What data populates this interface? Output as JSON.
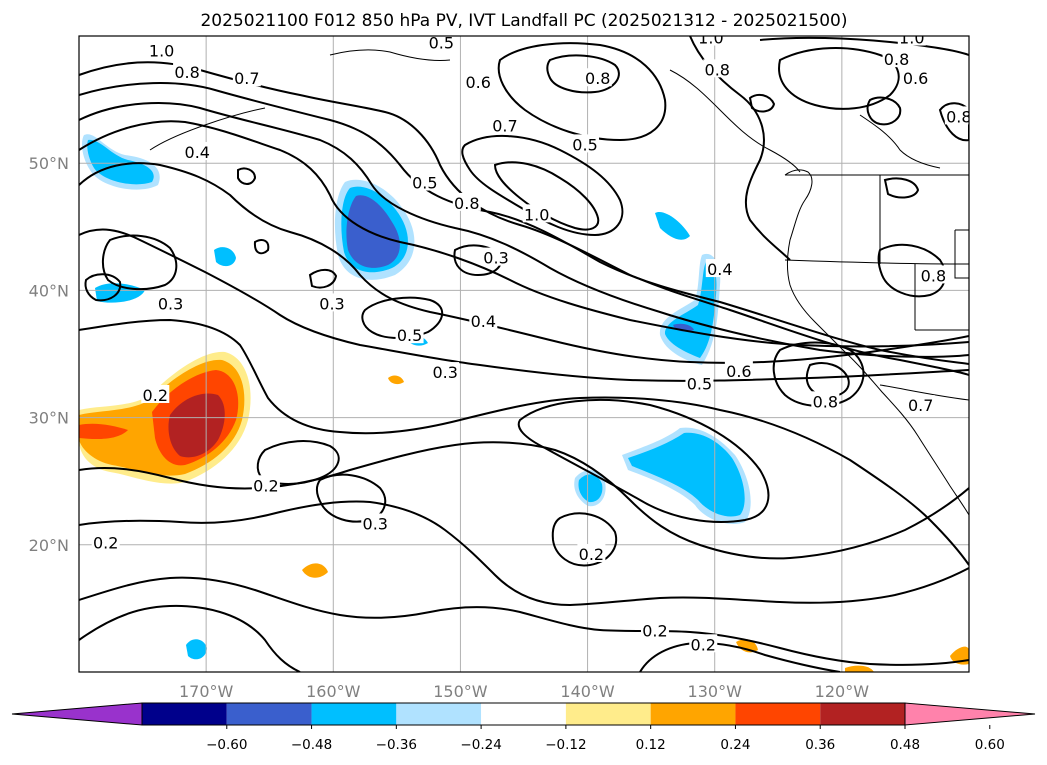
{
  "title": "2025021100 F012 850 hPa PV, IVT Landfall PC (2025021312 - 2025021500)",
  "map": {
    "projection": "PlateCarree",
    "extent": {
      "lon": [
        -180,
        -110
      ],
      "lat": [
        10,
        60
      ]
    },
    "gridlines": true,
    "lon_ticks": [
      {
        "value": -170,
        "label": "170°W"
      },
      {
        "value": -160,
        "label": "160°W"
      },
      {
        "value": -150,
        "label": "150°W"
      },
      {
        "value": -140,
        "label": "140°W"
      },
      {
        "value": -130,
        "label": "130°W"
      },
      {
        "value": -120,
        "label": "120°W"
      }
    ],
    "lat_ticks": [
      {
        "value": 20,
        "label": "20°N"
      },
      {
        "value": 30,
        "label": "30°N"
      },
      {
        "value": 40,
        "label": "40°N"
      },
      {
        "value": 50,
        "label": "50°N"
      }
    ]
  },
  "contour_labels": [
    {
      "text": "1.0",
      "lon": -173.5,
      "lat": 58.8
    },
    {
      "text": "0.8",
      "lon": -171.5,
      "lat": 57.1
    },
    {
      "text": "0.7",
      "lon": -166.8,
      "lat": 56.6
    },
    {
      "text": "0.5",
      "lon": -151.5,
      "lat": 59.4
    },
    {
      "text": "0.6",
      "lon": -148.6,
      "lat": 56.3
    },
    {
      "text": "0.7",
      "lon": -146.5,
      "lat": 52.9
    },
    {
      "text": "0.5",
      "lon": -140.2,
      "lat": 51.4
    },
    {
      "text": "0.8",
      "lon": -139.2,
      "lat": 56.6
    },
    {
      "text": "1.0",
      "lon": -130.3,
      "lat": 59.8
    },
    {
      "text": "0.8",
      "lon": -129.8,
      "lat": 57.3
    },
    {
      "text": "1.0",
      "lon": -114.5,
      "lat": 59.8
    },
    {
      "text": "0.8",
      "lon": -115.7,
      "lat": 58.1
    },
    {
      "text": "0.6",
      "lon": -114.2,
      "lat": 56.6
    },
    {
      "text": "0.8",
      "lon": -110.8,
      "lat": 53.6
    },
    {
      "text": "0.4",
      "lon": -170.7,
      "lat": 50.8
    },
    {
      "text": "0.5",
      "lon": -152.8,
      "lat": 48.4
    },
    {
      "text": "0.8",
      "lon": -149.5,
      "lat": 46.8
    },
    {
      "text": "1.0",
      "lon": -144.0,
      "lat": 45.9
    },
    {
      "text": "0.3",
      "lon": -147.2,
      "lat": 42.5
    },
    {
      "text": "0.4",
      "lon": -129.6,
      "lat": 41.6
    },
    {
      "text": "0.8",
      "lon": -112.8,
      "lat": 41.1
    },
    {
      "text": "0.3",
      "lon": -172.8,
      "lat": 38.9
    },
    {
      "text": "0.3",
      "lon": -160.1,
      "lat": 38.9
    },
    {
      "text": "0.5",
      "lon": -154.0,
      "lat": 36.4
    },
    {
      "text": "0.4",
      "lon": -148.2,
      "lat": 37.5
    },
    {
      "text": "0.3",
      "lon": -151.2,
      "lat": 33.5
    },
    {
      "text": "0.6",
      "lon": -128.1,
      "lat": 33.6
    },
    {
      "text": "0.5",
      "lon": -131.2,
      "lat": 32.6
    },
    {
      "text": "0.8",
      "lon": -121.3,
      "lat": 31.2
    },
    {
      "text": "0.7",
      "lon": -113.8,
      "lat": 30.9
    },
    {
      "text": "0.2",
      "lon": -174.0,
      "lat": 31.7
    },
    {
      "text": "0.2",
      "lon": -165.3,
      "lat": 24.6
    },
    {
      "text": "0.3",
      "lon": -156.7,
      "lat": 21.6
    },
    {
      "text": "0.2",
      "lon": -177.9,
      "lat": 20.1
    },
    {
      "text": "0.2",
      "lon": -139.7,
      "lat": 19.2
    },
    {
      "text": "0.2",
      "lon": -134.7,
      "lat": 13.2
    },
    {
      "text": "0.2",
      "lon": -130.9,
      "lat": 12.1
    }
  ],
  "colorbar": {
    "extend": "both",
    "levels": [
      -0.6,
      -0.48,
      -0.36,
      -0.24,
      -0.12,
      0.12,
      0.24,
      0.36,
      0.48,
      0.6
    ],
    "tick_labels": [
      "−0.60",
      "−0.48",
      "−0.36",
      "−0.24",
      "−0.12",
      "0.12",
      "0.24",
      "0.36",
      "0.48",
      "0.60"
    ],
    "colors": [
      "#9932cc",
      "#00008b",
      "#3a5fcd",
      "#00bfff",
      "#b0e2ff",
      "#ffffff",
      "#ffec8b",
      "#ffa500",
      "#ff4500",
      "#b22222",
      "#ff82ab"
    ]
  }
}
